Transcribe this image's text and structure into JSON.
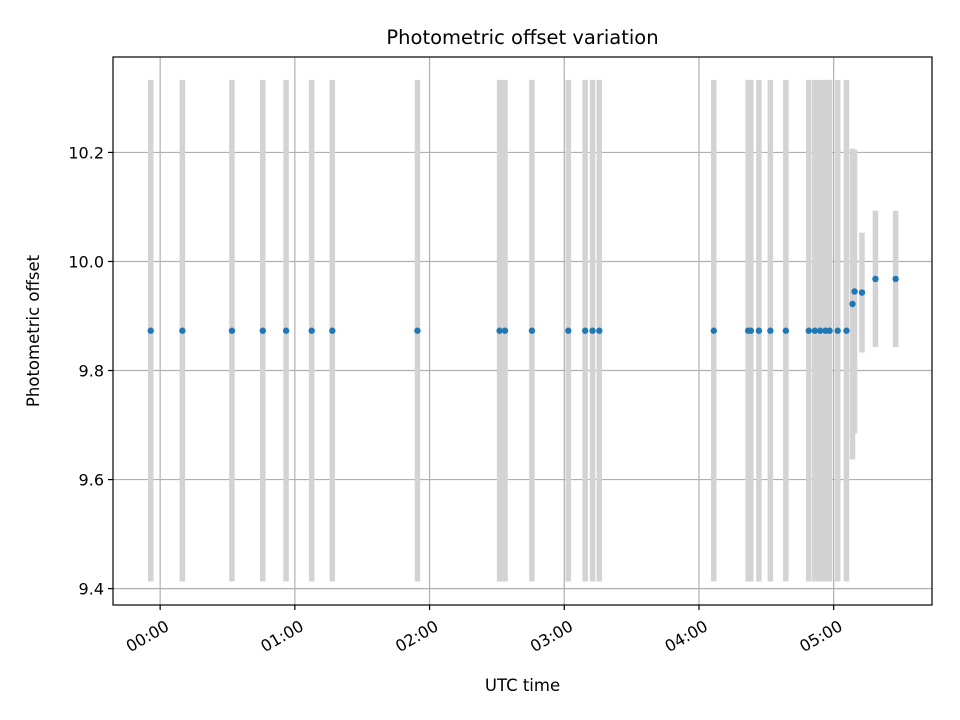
{
  "chart_data": {
    "type": "scatter",
    "title": "Photometric offset variation",
    "xlabel": "UTC time",
    "ylabel": "Photometric offset",
    "x_unit": "hours (UTC)",
    "xlim": [
      -0.35,
      5.73
    ],
    "ylim": [
      9.37,
      10.375
    ],
    "x_ticks": [
      {
        "value": 0,
        "label": "00:00"
      },
      {
        "value": 1,
        "label": "01:00"
      },
      {
        "value": 2,
        "label": "02:00"
      },
      {
        "value": 3,
        "label": "03:00"
      },
      {
        "value": 4,
        "label": "04:00"
      },
      {
        "value": 5,
        "label": "05:00"
      }
    ],
    "y_ticks": [
      {
        "value": 9.4,
        "label": "9.4"
      },
      {
        "value": 9.6,
        "label": "9.6"
      },
      {
        "value": 9.8,
        "label": "9.8"
      },
      {
        "value": 10.0,
        "label": "10.0"
      },
      {
        "value": 10.2,
        "label": "10.2"
      }
    ],
    "grid": true,
    "marker_color": "#1f77b4",
    "errorbar_color": "#d3d3d3",
    "points": [
      {
        "x": -0.07,
        "y": 9.873,
        "err": 0.46
      },
      {
        "x": 0.165,
        "y": 9.873,
        "err": 0.46
      },
      {
        "x": 0.533,
        "y": 9.873,
        "err": 0.46
      },
      {
        "x": 0.762,
        "y": 9.873,
        "err": 0.46
      },
      {
        "x": 0.935,
        "y": 9.873,
        "err": 0.46
      },
      {
        "x": 1.125,
        "y": 9.873,
        "err": 0.46
      },
      {
        "x": 1.278,
        "y": 9.873,
        "err": 0.46
      },
      {
        "x": 1.91,
        "y": 9.873,
        "err": 0.46
      },
      {
        "x": 2.52,
        "y": 9.873,
        "err": 0.46
      },
      {
        "x": 2.56,
        "y": 9.873,
        "err": 0.46
      },
      {
        "x": 2.76,
        "y": 9.873,
        "err": 0.46
      },
      {
        "x": 3.03,
        "y": 9.873,
        "err": 0.46
      },
      {
        "x": 3.155,
        "y": 9.873,
        "err": 0.46
      },
      {
        "x": 3.21,
        "y": 9.873,
        "err": 0.46
      },
      {
        "x": 3.26,
        "y": 9.873,
        "err": 0.46
      },
      {
        "x": 4.11,
        "y": 9.873,
        "err": 0.46
      },
      {
        "x": 4.365,
        "y": 9.873,
        "err": 0.46
      },
      {
        "x": 4.385,
        "y": 9.873,
        "err": 0.46
      },
      {
        "x": 4.445,
        "y": 9.873,
        "err": 0.46
      },
      {
        "x": 4.53,
        "y": 9.873,
        "err": 0.46
      },
      {
        "x": 4.645,
        "y": 9.873,
        "err": 0.46
      },
      {
        "x": 4.815,
        "y": 9.873,
        "err": 0.46
      },
      {
        "x": 4.86,
        "y": 9.873,
        "err": 0.46
      },
      {
        "x": 4.9,
        "y": 9.873,
        "err": 0.46
      },
      {
        "x": 4.94,
        "y": 9.873,
        "err": 0.46
      },
      {
        "x": 4.97,
        "y": 9.873,
        "err": 0.46
      },
      {
        "x": 5.03,
        "y": 9.873,
        "err": 0.46
      },
      {
        "x": 5.095,
        "y": 9.873,
        "err": 0.46
      },
      {
        "x": 5.14,
        "y": 9.922,
        "err": 0.285
      },
      {
        "x": 5.155,
        "y": 9.945,
        "err": 0.26
      },
      {
        "x": 5.21,
        "y": 9.943,
        "err": 0.11
      },
      {
        "x": 5.31,
        "y": 9.968,
        "err": 0.125
      },
      {
        "x": 5.46,
        "y": 9.968,
        "err": 0.125
      }
    ]
  }
}
